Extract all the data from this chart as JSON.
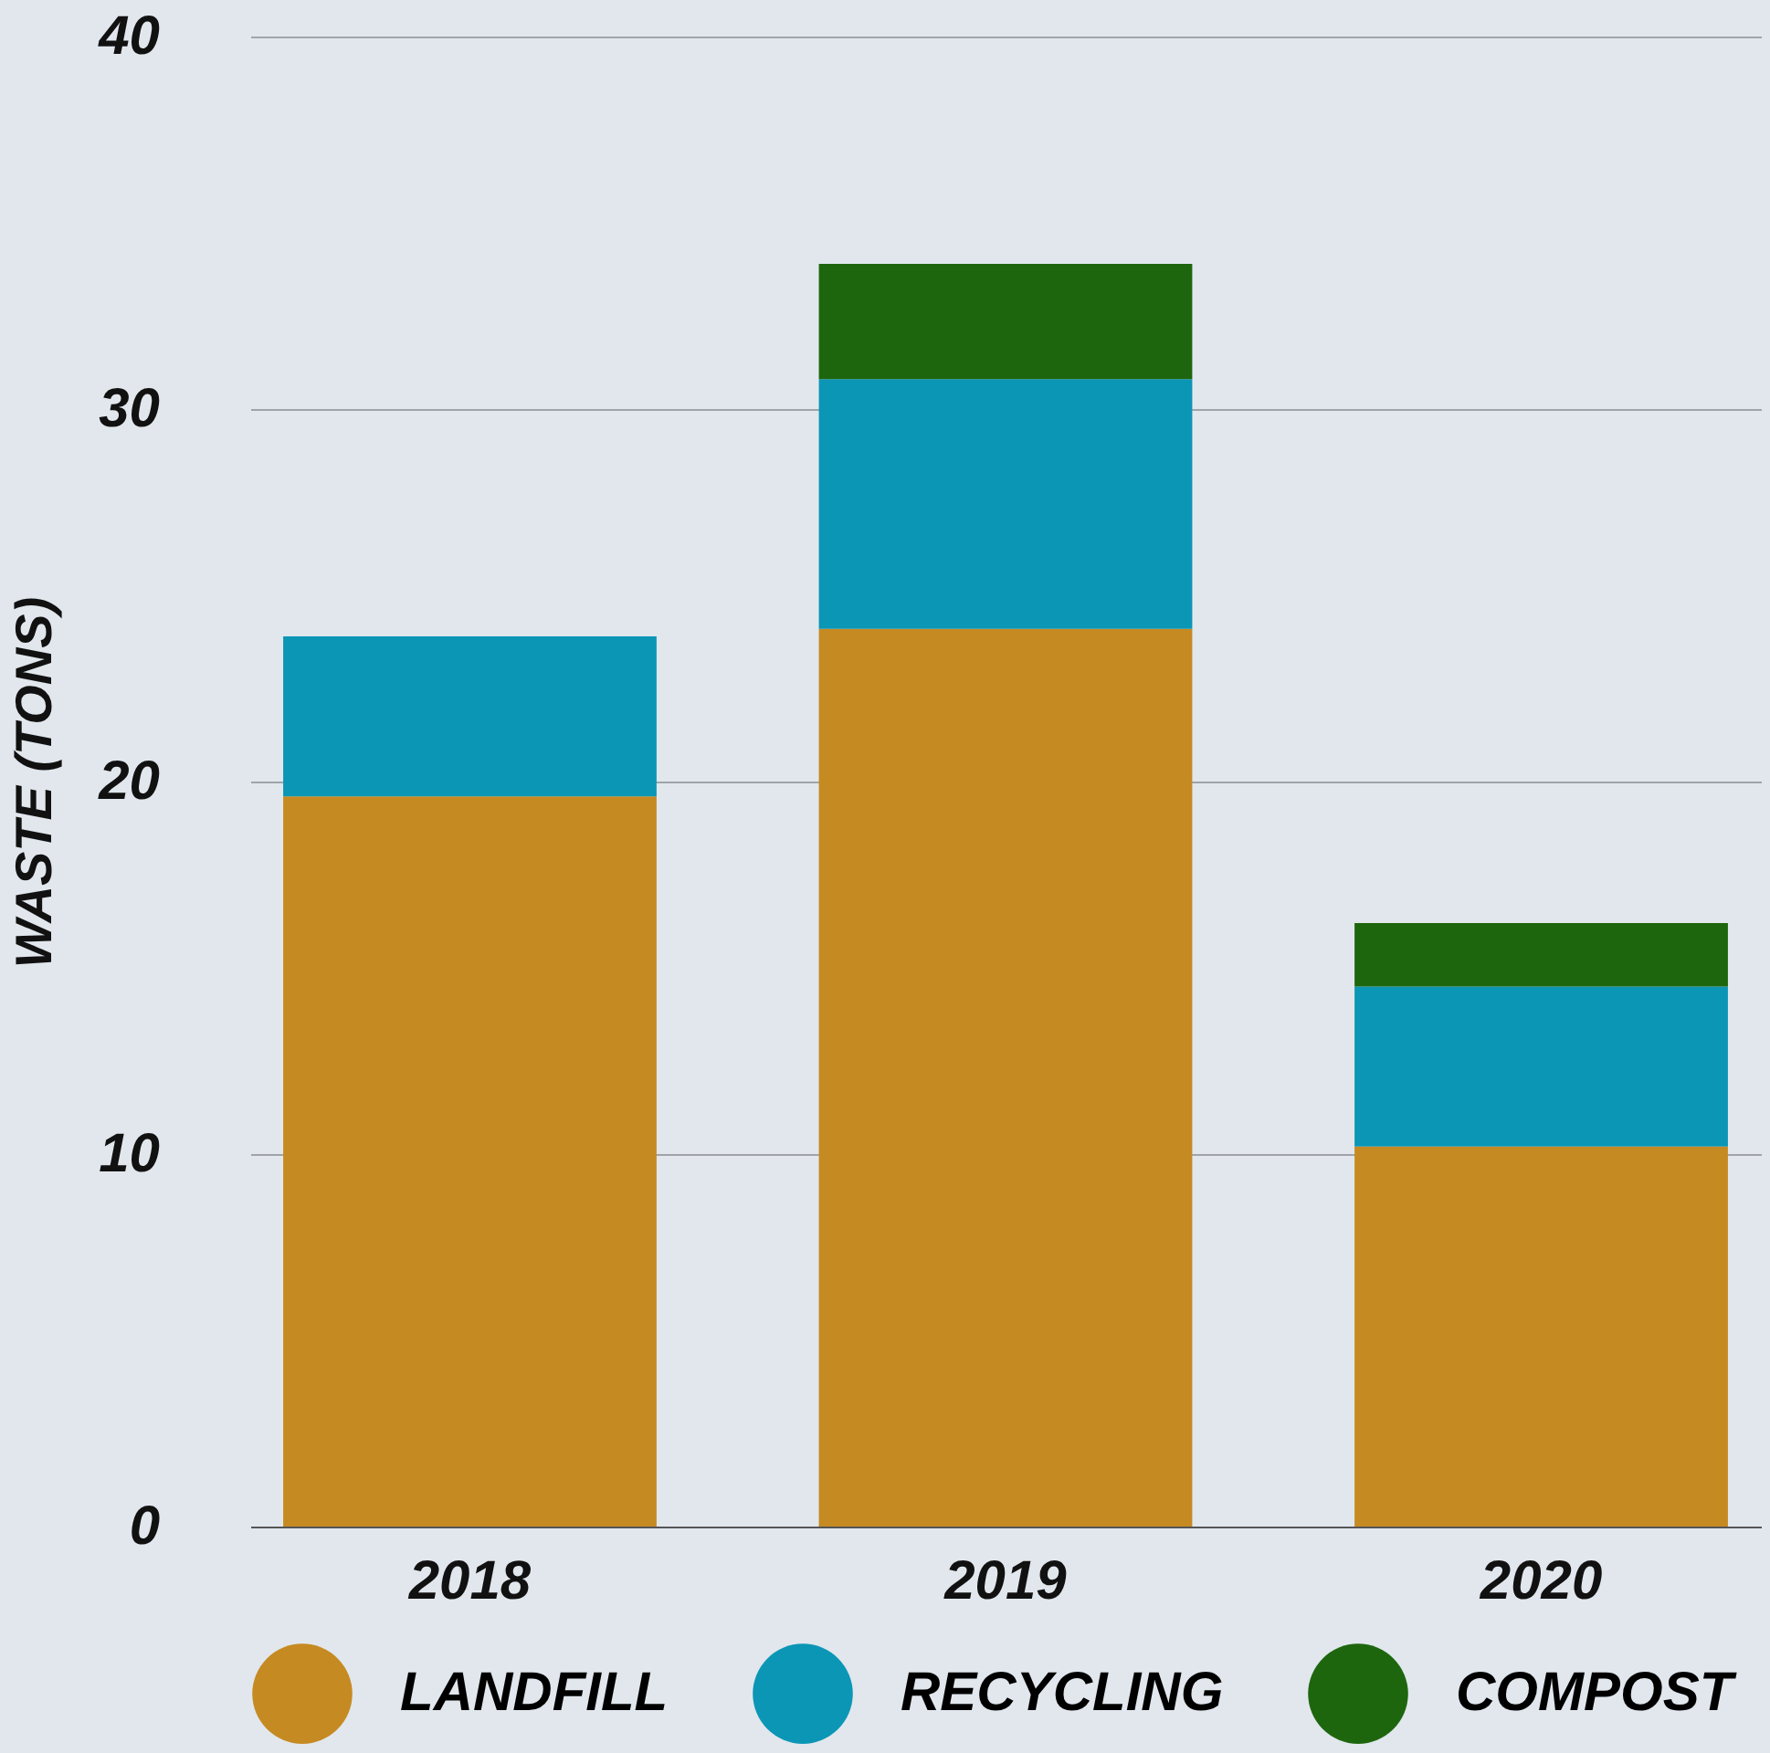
{
  "chart_data": {
    "type": "bar",
    "stacked": true,
    "ylabel": "WASTE (TONS)",
    "categories": [
      "2018",
      "2019",
      "2020"
    ],
    "series": [
      {
        "name": "LANDFILL",
        "color": "#c68a22",
        "values": [
          19.6,
          24.1,
          10.2
        ]
      },
      {
        "name": "RECYCLING",
        "color": "#0b96b5",
        "values": [
          4.3,
          6.7,
          4.3
        ]
      },
      {
        "name": "COMPOST",
        "color": "#1e660e",
        "values": [
          null,
          3.1,
          1.7
        ]
      }
    ],
    "ylim": [
      0,
      40
    ],
    "yticks": [
      0,
      10,
      20,
      30,
      40
    ],
    "grid": "y",
    "legend": "bottom"
  }
}
